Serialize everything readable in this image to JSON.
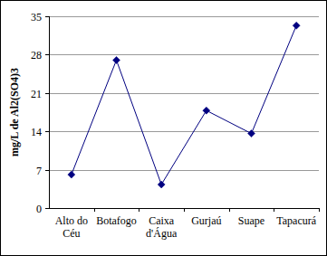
{
  "chart_data": {
    "type": "line",
    "y_label": "mg/L de Al2(SO4)3",
    "categories": [
      "Alto do Céu",
      "Botafogo",
      "Caixa d'Água",
      "Gurjaú",
      "Suape",
      "Tapacurá"
    ],
    "values": [
      6.1,
      27,
      4.3,
      17.8,
      13.6,
      33.3
    ],
    "color": "#000080",
    "marker": "diamond",
    "ylim": [
      0,
      35
    ],
    "yticks": [
      0,
      7,
      14,
      21,
      28,
      35
    ],
    "grid": true
  }
}
